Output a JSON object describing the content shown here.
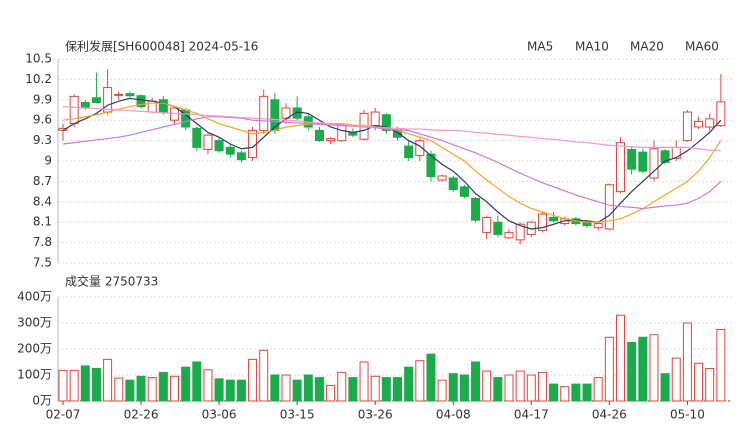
{
  "chart_data": [
    {
      "type": "candlestick",
      "title": "保利发展[SH600048] 2024-05-16",
      "up_color": "#e8453c",
      "down_color": "#1aab4a",
      "open": [
        9.45,
        9.55,
        9.86,
        9.93,
        9.72,
        9.97,
        9.99,
        9.96,
        9.72,
        9.9,
        9.6,
        9.75,
        9.48,
        9.17,
        9.3,
        9.2,
        9.12,
        9.05,
        9.45,
        9.9,
        9.63,
        9.78,
        9.65,
        9.45,
        9.3,
        9.3,
        9.42,
        9.32,
        9.52,
        9.68,
        9.45,
        9.22,
        9.08,
        9.1,
        8.72,
        8.75,
        8.62,
        8.45,
        7.95,
        8.1,
        7.87,
        7.84,
        7.92,
        7.98,
        8.17,
        8.08,
        8.15,
        8.1,
        8.02,
        8.0,
        8.55,
        9.17,
        9.13,
        8.75,
        9.15,
        9.04,
        9.3,
        9.5,
        9.5,
        9.52
      ],
      "high": [
        9.55,
        9.98,
        9.9,
        10.3,
        10.35,
        10.02,
        10.02,
        9.98,
        9.93,
        9.95,
        9.8,
        9.78,
        9.5,
        9.4,
        9.35,
        9.25,
        9.15,
        9.5,
        10.05,
        10.0,
        9.85,
        9.95,
        9.7,
        9.5,
        9.35,
        9.55,
        9.48,
        9.75,
        9.78,
        9.7,
        9.5,
        9.3,
        9.35,
        9.15,
        8.8,
        8.78,
        8.65,
        8.47,
        8.2,
        8.2,
        8.0,
        8.1,
        8.12,
        8.25,
        8.25,
        8.18,
        8.18,
        8.12,
        8.12,
        8.67,
        9.35,
        9.2,
        9.18,
        9.3,
        9.17,
        9.3,
        9.75,
        9.65,
        9.7,
        10.28
      ],
      "low": [
        9.3,
        9.5,
        9.75,
        9.85,
        9.68,
        9.9,
        9.93,
        9.77,
        9.7,
        9.68,
        9.55,
        9.45,
        9.15,
        9.1,
        9.12,
        9.05,
        8.98,
        9.0,
        9.4,
        9.4,
        9.55,
        9.6,
        9.45,
        9.28,
        9.25,
        9.28,
        9.35,
        9.3,
        9.45,
        9.4,
        9.3,
        9.0,
        9.0,
        8.7,
        8.7,
        8.55,
        8.45,
        8.1,
        7.85,
        7.88,
        7.85,
        7.77,
        7.88,
        7.95,
        8.1,
        8.05,
        8.05,
        8.02,
        7.98,
        7.98,
        8.52,
        8.8,
        8.82,
        8.7,
        8.95,
        9.0,
        9.28,
        9.47,
        9.45,
        9.5
      ],
      "close": [
        9.48,
        9.95,
        9.78,
        9.86,
        10.08,
        9.98,
        9.96,
        9.8,
        9.88,
        9.72,
        9.78,
        9.5,
        9.2,
        9.38,
        9.15,
        9.1,
        9.02,
        9.45,
        9.95,
        9.45,
        9.78,
        9.63,
        9.5,
        9.3,
        9.33,
        9.53,
        9.38,
        9.7,
        9.72,
        9.45,
        9.35,
        9.05,
        9.3,
        8.77,
        8.78,
        8.58,
        8.48,
        8.13,
        8.17,
        7.92,
        7.95,
        8.07,
        8.1,
        8.22,
        8.12,
        8.15,
        8.08,
        8.05,
        8.08,
        8.65,
        9.27,
        8.88,
        8.85,
        9.18,
        8.98,
        9.2,
        9.72,
        9.58,
        9.62,
        9.87
      ],
      "series": [
        {
          "name": "MA5",
          "color": "#2b3a67",
          "values": [
            9.45,
            9.55,
            9.62,
            9.7,
            9.82,
            9.88,
            9.92,
            9.9,
            9.88,
            9.85,
            9.8,
            9.68,
            9.55,
            9.42,
            9.35,
            9.25,
            9.18,
            9.2,
            9.35,
            9.5,
            9.62,
            9.72,
            9.7,
            9.6,
            9.5,
            9.45,
            9.42,
            9.45,
            9.52,
            9.5,
            9.42,
            9.3,
            9.22,
            9.08,
            8.95,
            8.85,
            8.7,
            8.52,
            8.4,
            8.25,
            8.12,
            8.05,
            8.0,
            8.02,
            8.07,
            8.12,
            8.13,
            8.12,
            8.1,
            8.2,
            8.38,
            8.55,
            8.7,
            8.85,
            9.0,
            9.05,
            9.15,
            9.28,
            9.42,
            9.6
          ]
        },
        {
          "name": "MA10",
          "color": "#f5a623",
          "values": [
            9.6,
            9.62,
            9.65,
            9.68,
            9.72,
            9.76,
            9.8,
            9.83,
            9.85,
            9.85,
            9.8,
            9.75,
            9.7,
            9.62,
            9.55,
            9.5,
            9.45,
            9.4,
            9.42,
            9.45,
            9.5,
            9.52,
            9.54,
            9.55,
            9.55,
            9.55,
            9.53,
            9.52,
            9.5,
            9.48,
            9.45,
            9.4,
            9.35,
            9.3,
            9.2,
            9.1,
            9.0,
            8.85,
            8.72,
            8.6,
            8.48,
            8.38,
            8.3,
            8.25,
            8.2,
            8.15,
            8.12,
            8.1,
            8.1,
            8.12,
            8.15,
            8.22,
            8.3,
            8.4,
            8.5,
            8.6,
            8.7,
            8.85,
            9.05,
            9.3
          ]
        },
        {
          "name": "MA20",
          "color": "#c77ddb",
          "values": [
            9.25,
            9.27,
            9.29,
            9.31,
            9.33,
            9.35,
            9.38,
            9.42,
            9.46,
            9.5,
            9.54,
            9.58,
            9.62,
            9.65,
            9.65,
            9.64,
            9.63,
            9.6,
            9.59,
            9.58,
            9.57,
            9.56,
            9.55,
            9.54,
            9.53,
            9.52,
            9.51,
            9.5,
            9.49,
            9.47,
            9.46,
            9.45,
            9.4,
            9.35,
            9.3,
            9.24,
            9.18,
            9.12,
            9.05,
            8.98,
            8.9,
            8.82,
            8.75,
            8.68,
            8.62,
            8.56,
            8.5,
            8.45,
            8.4,
            8.35,
            8.33,
            8.32,
            8.3,
            8.32,
            8.34,
            8.35,
            8.38,
            8.45,
            8.55,
            8.7
          ]
        },
        {
          "name": "MA60",
          "color": "#f09ad0",
          "values": [
            9.8,
            9.79,
            9.78,
            9.77,
            9.76,
            9.75,
            9.74,
            9.73,
            9.72,
            9.71,
            9.7,
            9.69,
            9.68,
            9.67,
            9.66,
            9.65,
            9.64,
            9.63,
            9.62,
            9.61,
            9.6,
            9.59,
            9.57,
            9.56,
            9.55,
            9.54,
            9.52,
            9.51,
            9.5,
            9.49,
            9.48,
            9.47,
            9.47,
            9.46,
            9.45,
            9.45,
            9.44,
            9.42,
            9.41,
            9.39,
            9.38,
            9.36,
            9.35,
            9.33,
            9.32,
            9.3,
            9.28,
            9.27,
            9.25,
            9.23,
            9.22,
            9.21,
            9.2,
            9.2,
            9.2,
            9.2,
            9.2,
            9.18,
            9.16,
            9.15
          ]
        }
      ],
      "ylim": [
        7.5,
        10.5
      ],
      "yticks": [
        7.5,
        7.8,
        8.1,
        8.4,
        8.7,
        9,
        9.3,
        9.6,
        9.9,
        10.2,
        10.5
      ],
      "grid": true
    },
    {
      "type": "bar",
      "title": "成交量 2750733",
      "categories": [
        "02-07",
        null,
        null,
        null,
        null,
        null,
        null,
        "02-26",
        null,
        null,
        null,
        null,
        null,
        null,
        "03-06",
        null,
        null,
        null,
        null,
        null,
        null,
        "03-15",
        null,
        null,
        null,
        null,
        null,
        null,
        "03-26",
        null,
        null,
        null,
        null,
        null,
        null,
        "04-08",
        null,
        null,
        null,
        null,
        null,
        null,
        "04-17",
        null,
        null,
        null,
        null,
        null,
        null,
        "04-26",
        null,
        null,
        null,
        null,
        null,
        null,
        "05-10",
        null,
        null,
        null
      ],
      "values": [
        118,
        118,
        135,
        125,
        160,
        88,
        80,
        95,
        90,
        110,
        95,
        130,
        150,
        120,
        85,
        80,
        80,
        160,
        195,
        100,
        100,
        80,
        100,
        90,
        60,
        110,
        90,
        150,
        95,
        90,
        90,
        130,
        155,
        180,
        80,
        105,
        100,
        150,
        115,
        90,
        100,
        115,
        100,
        110,
        65,
        55,
        65,
        65,
        90,
        245,
        330,
        225,
        245,
        255,
        105,
        165,
        300,
        145,
        125,
        275
      ],
      "ylim": [
        0,
        400
      ],
      "yticks": [
        {
          "value": 0,
          "label": "0万"
        },
        {
          "value": 100,
          "label": "100万"
        },
        {
          "value": 200,
          "label": "200万"
        },
        {
          "value": 300,
          "label": "300万"
        },
        {
          "value": 400,
          "label": "400万"
        }
      ],
      "grid": true
    }
  ]
}
